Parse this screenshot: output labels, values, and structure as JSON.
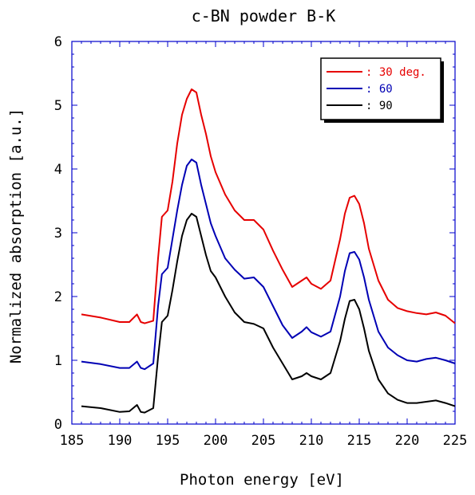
{
  "chart_data": {
    "type": "line",
    "title": "c-BN powder B-K",
    "xlabel": "Photon energy [eV]",
    "ylabel": "Normalized absorption [a.u.]",
    "xlim": [
      185,
      225
    ],
    "ylim": [
      0,
      6
    ],
    "xticks": [
      "185",
      "190",
      "195",
      "200",
      "205",
      "210",
      "215",
      "220",
      "225"
    ],
    "yticks": [
      "0",
      "1",
      "2",
      "3",
      "4",
      "5",
      "6"
    ],
    "grid": false,
    "legend_position": "top-right",
    "colors": {
      "axes": "#0000cc",
      "30": "#e60000",
      "60": "#0000b4",
      "90": "#000000"
    },
    "series": [
      {
        "name": ": 30 deg.",
        "color": "#e60000",
        "x": [
          186,
          188,
          190,
          191,
          191.8,
          192.2,
          192.6,
          193.5,
          194.0,
          194.4,
          195.0,
          195.5,
          196.0,
          196.5,
          197.0,
          197.5,
          198.0,
          198.5,
          199.0,
          199.5,
          200.0,
          201.0,
          202.0,
          203.0,
          204.0,
          205.0,
          206.0,
          207.0,
          208.0,
          209.0,
          209.5,
          210.0,
          211.0,
          212.0,
          213.0,
          213.5,
          214.0,
          214.5,
          215.0,
          215.5,
          216.0,
          217.0,
          218.0,
          219.0,
          220.0,
          221.0,
          222.0,
          223.0,
          224.0,
          225.0
        ],
        "y": [
          1.72,
          1.67,
          1.6,
          1.6,
          1.72,
          1.6,
          1.58,
          1.62,
          2.6,
          3.25,
          3.35,
          3.8,
          4.4,
          4.85,
          5.1,
          5.25,
          5.2,
          4.85,
          4.55,
          4.2,
          3.95,
          3.6,
          3.35,
          3.2,
          3.2,
          3.05,
          2.72,
          2.42,
          2.15,
          2.25,
          2.3,
          2.2,
          2.12,
          2.25,
          2.9,
          3.3,
          3.55,
          3.58,
          3.45,
          3.15,
          2.75,
          2.25,
          1.95,
          1.82,
          1.77,
          1.74,
          1.72,
          1.75,
          1.7,
          1.58
        ]
      },
      {
        "name": ": 60",
        "color": "#0000b4",
        "x": [
          186,
          188,
          190,
          191,
          191.8,
          192.2,
          192.6,
          193.5,
          194.0,
          194.4,
          195.0,
          195.5,
          196.0,
          196.5,
          197.0,
          197.5,
          198.0,
          198.5,
          199.0,
          199.5,
          200.0,
          201.0,
          202.0,
          203.0,
          204.0,
          205.0,
          206.0,
          207.0,
          208.0,
          209.0,
          209.5,
          210.0,
          211.0,
          212.0,
          213.0,
          213.5,
          214.0,
          214.5,
          215.0,
          215.5,
          216.0,
          217.0,
          218.0,
          219.0,
          220.0,
          221.0,
          222.0,
          223.0,
          224.0,
          225.0
        ],
        "y": [
          0.98,
          0.94,
          0.88,
          0.88,
          0.98,
          0.88,
          0.86,
          0.95,
          1.85,
          2.35,
          2.45,
          2.9,
          3.35,
          3.75,
          4.05,
          4.15,
          4.1,
          3.75,
          3.45,
          3.15,
          2.95,
          2.6,
          2.42,
          2.28,
          2.3,
          2.15,
          1.85,
          1.55,
          1.35,
          1.45,
          1.52,
          1.44,
          1.37,
          1.45,
          2.0,
          2.4,
          2.68,
          2.7,
          2.58,
          2.3,
          1.95,
          1.45,
          1.2,
          1.08,
          1.0,
          0.98,
          1.02,
          1.04,
          1.0,
          0.95
        ]
      },
      {
        "name": ": 90",
        "color": "#000000",
        "x": [
          186,
          188,
          190,
          191,
          191.8,
          192.2,
          192.6,
          193.5,
          194.0,
          194.4,
          195.0,
          195.5,
          196.0,
          196.5,
          197.0,
          197.5,
          198.0,
          198.5,
          199.0,
          199.5,
          200.0,
          201.0,
          202.0,
          203.0,
          204.0,
          205.0,
          206.0,
          207.0,
          208.0,
          209.0,
          209.5,
          210.0,
          211.0,
          212.0,
          213.0,
          213.5,
          214.0,
          214.5,
          215.0,
          215.5,
          216.0,
          217.0,
          218.0,
          219.0,
          220.0,
          221.0,
          222.0,
          223.0,
          224.0,
          225.0
        ],
        "y": [
          0.28,
          0.25,
          0.19,
          0.2,
          0.3,
          0.19,
          0.18,
          0.25,
          1.05,
          1.6,
          1.7,
          2.1,
          2.55,
          2.95,
          3.2,
          3.3,
          3.25,
          2.95,
          2.65,
          2.4,
          2.3,
          2.0,
          1.75,
          1.6,
          1.57,
          1.5,
          1.2,
          0.95,
          0.7,
          0.75,
          0.8,
          0.75,
          0.7,
          0.8,
          1.3,
          1.65,
          1.93,
          1.95,
          1.8,
          1.5,
          1.15,
          0.7,
          0.48,
          0.38,
          0.33,
          0.33,
          0.35,
          0.37,
          0.33,
          0.28
        ]
      }
    ]
  }
}
